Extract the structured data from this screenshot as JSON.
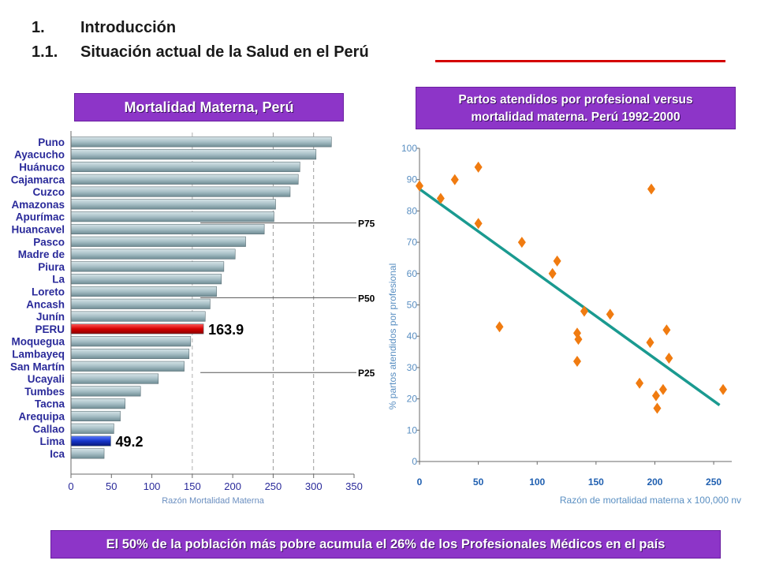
{
  "heading": {
    "line1_num": "1.",
    "line1_text": "Introducción",
    "line2_num": "1.1.",
    "line2_text": "Situación actual de la Salud en el Perú"
  },
  "left_panel": {
    "title": "Mortalidad Materna, Perú"
  },
  "right_panel": {
    "title_line1": "Partos atendidos por profesional versus",
    "title_line2": "mortalidad materna. Perú 1992-2000"
  },
  "footer": {
    "text": "El 50% de la población más pobre acumula  el 26% de los Profesionales Médicos en el país"
  },
  "colors": {
    "banner": "#8d35c8",
    "bar": "#a7bfc6",
    "peru_bar": "#d40000",
    "lima_bar": "#1535c8",
    "scatter_point": "#f07b10",
    "trend_line": "#1a9a90",
    "axis_text_right": "#5a8fc2"
  },
  "chart_data": [
    {
      "type": "bar",
      "orientation": "horizontal",
      "categories": [
        "Puno",
        "Ayacucho",
        "Huánuco",
        "Cajamarca",
        "Cuzco",
        "Amazonas",
        "Apurímac",
        "Huancavel",
        "Pasco",
        "Madre de",
        "Piura",
        "La",
        "Loreto",
        "Ancash",
        "Junín",
        "PERU",
        "Moquegua",
        "Lambayeq",
        "San Martín",
        "Ucayali",
        "Tumbes",
        "Tacna",
        "Arequipa",
        "Callao",
        "Lima",
        "Ica"
      ],
      "values": [
        322,
        303,
        283,
        281,
        271,
        253,
        251,
        239,
        216,
        203,
        189,
        186,
        180,
        172,
        166,
        163.9,
        148,
        146,
        140,
        108,
        86,
        67,
        61,
        53,
        49.2,
        41
      ],
      "xlabel": "Razón Mortalidad Materna",
      "xlim": [
        0,
        350
      ],
      "xticks": [
        "0",
        "50",
        "100",
        "150",
        "200",
        "250",
        "300",
        "350"
      ],
      "highlights": [
        {
          "category": "PERU",
          "label": "163.9"
        },
        {
          "category": "Lima",
          "label": "49.2"
        }
      ],
      "reference_lines": [
        {
          "label": "P75",
          "after_category": "Apurímac"
        },
        {
          "label": "P50",
          "after_category": "Loreto"
        },
        {
          "label": "P25",
          "after_category": "San Martín"
        }
      ],
      "grid": "vertical dashed at 250 and 300"
    },
    {
      "type": "scatter",
      "title": "Partos atendidos por profesional versus mortalidad materna. Perú 1992-2000",
      "xlabel": "Razón de mortalidad materna x 100,000 nv",
      "ylabel": "% partos atendidos por profesional",
      "xlim": [
        0,
        260
      ],
      "ylim": [
        0,
        100
      ],
      "xticks": [
        "0",
        "50",
        "100",
        "150",
        "200",
        "250"
      ],
      "yticks": [
        "0",
        "10",
        "20",
        "30",
        "40",
        "50",
        "60",
        "70",
        "80",
        "90",
        "100"
      ],
      "points": [
        {
          "x": 0,
          "y": 88
        },
        {
          "x": 18,
          "y": 84
        },
        {
          "x": 30,
          "y": 90
        },
        {
          "x": 50,
          "y": 94
        },
        {
          "x": 50,
          "y": 76
        },
        {
          "x": 68,
          "y": 43
        },
        {
          "x": 87,
          "y": 70
        },
        {
          "x": 113,
          "y": 60
        },
        {
          "x": 117,
          "y": 64
        },
        {
          "x": 134,
          "y": 32
        },
        {
          "x": 134,
          "y": 41
        },
        {
          "x": 135,
          "y": 39
        },
        {
          "x": 140,
          "y": 48
        },
        {
          "x": 162,
          "y": 47
        },
        {
          "x": 187,
          "y": 25
        },
        {
          "x": 196,
          "y": 38
        },
        {
          "x": 197,
          "y": 87
        },
        {
          "x": 201,
          "y": 21
        },
        {
          "x": 202,
          "y": 17
        },
        {
          "x": 207,
          "y": 23
        },
        {
          "x": 210,
          "y": 42
        },
        {
          "x": 212,
          "y": 33
        },
        {
          "x": 258,
          "y": 23
        }
      ],
      "trendline": {
        "x": [
          0,
          255
        ],
        "y": [
          87,
          18
        ]
      }
    }
  ]
}
